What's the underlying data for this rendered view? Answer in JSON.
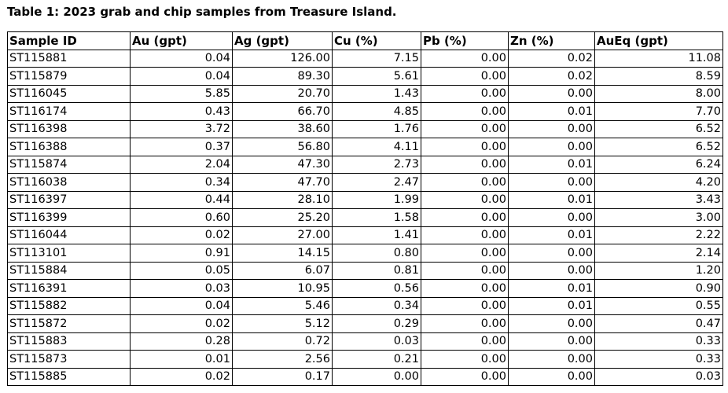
{
  "caption": "Table 1: 2023 grab and chip samples from Treasure Island.",
  "headers": [
    "Sample ID",
    "Au (gpt)",
    "Ag (gpt)",
    "Cu (%)",
    "Pb (%)",
    "Zn (%)",
    "AuEq (gpt)"
  ],
  "rows": [
    [
      "ST115881",
      "0.04",
      "126.00",
      "7.15",
      "0.00",
      "0.02",
      "11.08"
    ],
    [
      "ST115879",
      "0.04",
      "89.30",
      "5.61",
      "0.00",
      "0.02",
      "8.59"
    ],
    [
      "ST116045",
      "5.85",
      "20.70",
      "1.43",
      "0.00",
      "0.00",
      "8.00"
    ],
    [
      "ST116174",
      "0.43",
      "66.70",
      "4.85",
      "0.00",
      "0.01",
      "7.70"
    ],
    [
      "ST116398",
      "3.72",
      "38.60",
      "1.76",
      "0.00",
      "0.00",
      "6.52"
    ],
    [
      "ST116388",
      "0.37",
      "56.80",
      "4.11",
      "0.00",
      "0.00",
      "6.52"
    ],
    [
      "ST115874",
      "2.04",
      "47.30",
      "2.73",
      "0.00",
      "0.01",
      "6.24"
    ],
    [
      "ST116038",
      "0.34",
      "47.70",
      "2.47",
      "0.00",
      "0.00",
      "4.20"
    ],
    [
      "ST116397",
      "0.44",
      "28.10",
      "1.99",
      "0.00",
      "0.01",
      "3.43"
    ],
    [
      "ST116399",
      "0.60",
      "25.20",
      "1.58",
      "0.00",
      "0.00",
      "3.00"
    ],
    [
      "ST116044",
      "0.02",
      "27.00",
      "1.41",
      "0.00",
      "0.01",
      "2.22"
    ],
    [
      "ST113101",
      "0.91",
      "14.15",
      "0.80",
      "0.00",
      "0.00",
      "2.14"
    ],
    [
      "ST115884",
      "0.05",
      "6.07",
      "0.81",
      "0.00",
      "0.00",
      "1.20"
    ],
    [
      "ST116391",
      "0.03",
      "10.95",
      "0.56",
      "0.00",
      "0.01",
      "0.90"
    ],
    [
      "ST115882",
      "0.04",
      "5.46",
      "0.34",
      "0.00",
      "0.01",
      "0.55"
    ],
    [
      "ST115872",
      "0.02",
      "5.12",
      "0.29",
      "0.00",
      "0.00",
      "0.47"
    ],
    [
      "ST115883",
      "0.28",
      "0.72",
      "0.03",
      "0.00",
      "0.00",
      "0.33"
    ],
    [
      "ST115873",
      "0.01",
      "2.56",
      "0.21",
      "0.00",
      "0.00",
      "0.33"
    ],
    [
      "ST115885",
      "0.02",
      "0.17",
      "0.00",
      "0.00",
      "0.00",
      "0.03"
    ]
  ]
}
